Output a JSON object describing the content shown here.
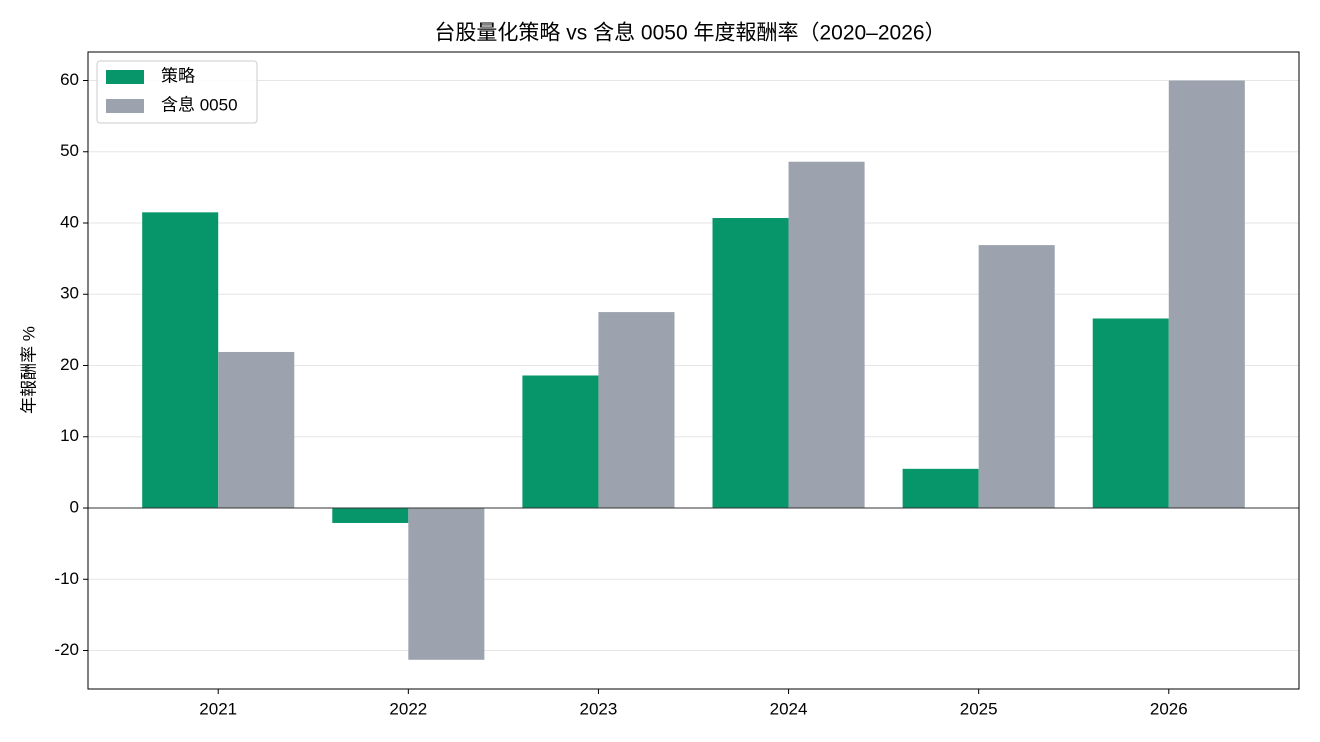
{
  "chart_data": {
    "type": "bar",
    "title": "台股量化策略 vs 含息 0050 年度報酬率（2020–2026）",
    "y_label": "年報酬率 %",
    "categories": [
      "2021",
      "2022",
      "2023",
      "2024",
      "2025",
      "2026"
    ],
    "series": [
      {
        "name": "策略",
        "color": "#069669",
        "values": [
          41.5,
          -2.1,
          18.6,
          40.7,
          5.5,
          26.6
        ]
      },
      {
        "name": "含息 0050",
        "color": "#9ca3ae",
        "values": [
          21.9,
          -21.3,
          27.5,
          48.6,
          36.9,
          60.0
        ]
      }
    ],
    "ylim": [
      -25.4,
      64
    ],
    "yticks": [
      -20,
      -10,
      0,
      10,
      20,
      30,
      40,
      50,
      60
    ],
    "grid": true,
    "legend": "upper-left"
  }
}
